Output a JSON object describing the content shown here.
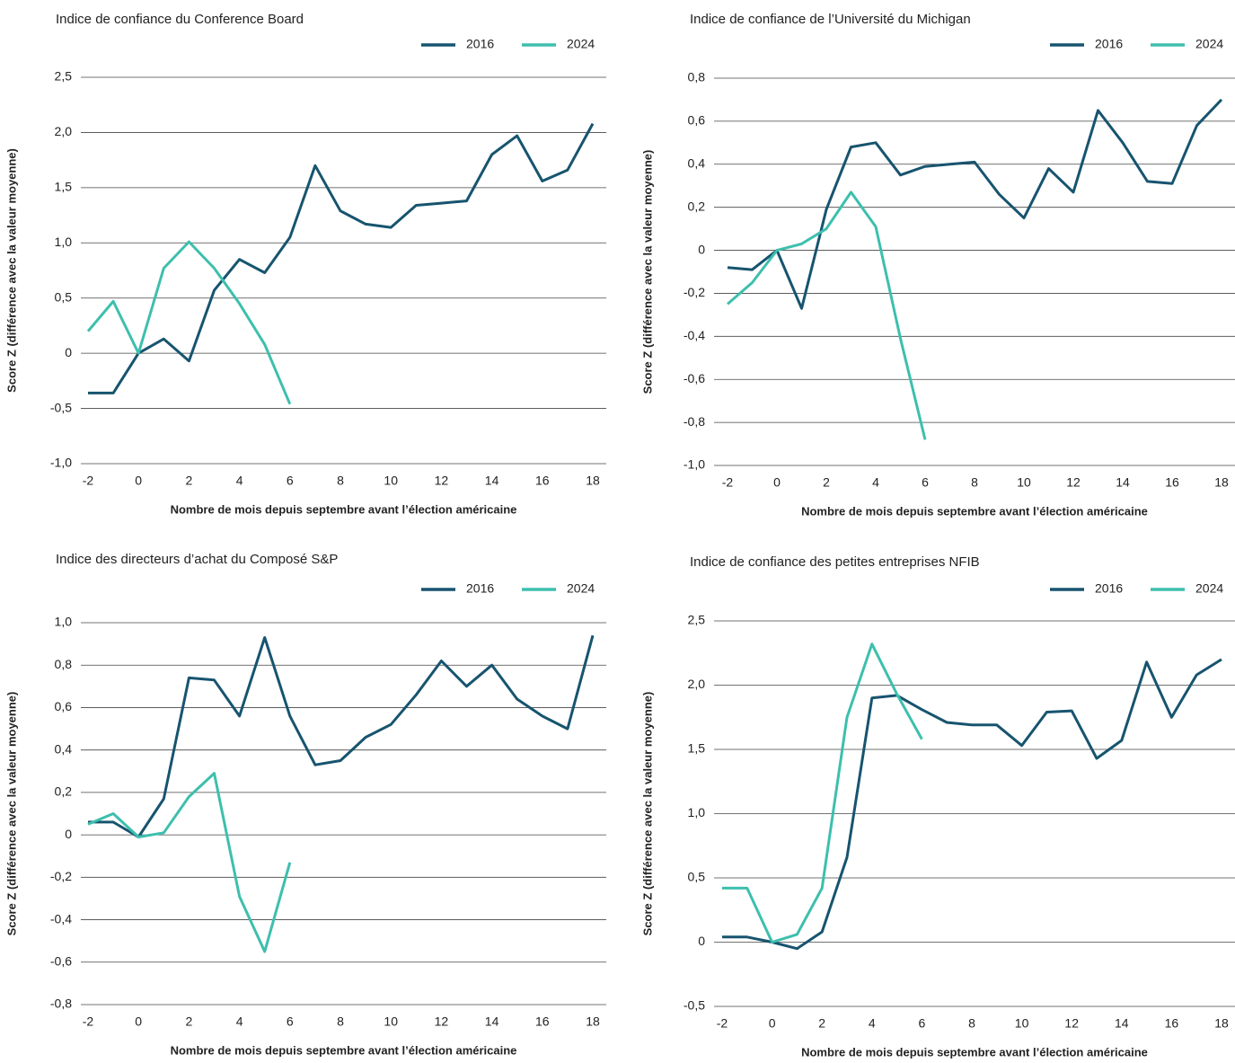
{
  "chart_data": [
    {
      "type": "line",
      "title": "Indice de confiance du Conference Board",
      "ylabel": "Score Z (différence avec la valeur moyenne)",
      "xlabel": "Nombre de mois depuis septembre avant l’élection américaine",
      "x": [
        -2,
        -1,
        0,
        1,
        2,
        3,
        4,
        5,
        6,
        7,
        8,
        9,
        10,
        11,
        12,
        13,
        14,
        15,
        16,
        17,
        18
      ],
      "xlim": [
        -2,
        18
      ],
      "xticks": [
        -2,
        0,
        2,
        4,
        6,
        8,
        10,
        12,
        14,
        16,
        18
      ],
      "ylim": [
        -1.0,
        2.5
      ],
      "yticks": [
        {
          "value": -1.0,
          "label": "-1,0"
        },
        {
          "value": -0.5,
          "label": "-0,5"
        },
        0,
        {
          "value": 0.5,
          "label": "0,5"
        },
        {
          "value": 1.0,
          "label": "1,0"
        },
        {
          "value": 1.5,
          "label": "1,5"
        },
        {
          "value": 2.0,
          "label": "2,0"
        },
        {
          "value": 2.5,
          "label": "2,5"
        }
      ],
      "grid": true,
      "legend": "top-right",
      "series": [
        {
          "name": "2016",
          "color": "#17546f",
          "values": [
            -0.36,
            -0.36,
            0,
            0.13,
            -0.07,
            0.57,
            0.85,
            0.73,
            1.05,
            1.7,
            1.29,
            1.17,
            1.14,
            1.34,
            1.36,
            1.38,
            1.8,
            1.97,
            1.56,
            1.66,
            2.08
          ]
        },
        {
          "name": "2024",
          "color": "#3dbfad",
          "values": [
            0.2,
            0.47,
            0,
            0.77,
            1.01,
            0.77,
            0.45,
            0.08,
            -0.46,
            null,
            null,
            null,
            null,
            null,
            null,
            null,
            null,
            null,
            null,
            null,
            null
          ]
        }
      ]
    },
    {
      "type": "line",
      "title": "Indice de confiance de l’Université du Michigan",
      "ylabel": "Score Z (différence avec la valeur moyenne)",
      "xlabel": "Nombre de mois depuis septembre avant l’élection américaine",
      "x": [
        -2,
        -1,
        0,
        1,
        2,
        3,
        4,
        5,
        6,
        7,
        8,
        9,
        10,
        11,
        12,
        13,
        14,
        15,
        16,
        17,
        18
      ],
      "xlim": [
        -2,
        18
      ],
      "xticks": [
        -2,
        0,
        2,
        4,
        6,
        8,
        10,
        12,
        14,
        16,
        18
      ],
      "ylim": [
        -1.0,
        0.8
      ],
      "yticks": [
        {
          "value": -1.0,
          "label": "-1,0"
        },
        {
          "value": -0.8,
          "label": "-0,8"
        },
        {
          "value": -0.6,
          "label": "-0,6"
        },
        {
          "value": -0.4,
          "label": "-0,4"
        },
        {
          "value": -0.2,
          "label": "-0,2"
        },
        0,
        {
          "value": 0.2,
          "label": "0,2"
        },
        {
          "value": 0.4,
          "label": "0,4"
        },
        {
          "value": 0.6,
          "label": "0,6"
        },
        {
          "value": 0.8,
          "label": "0,8"
        }
      ],
      "grid": true,
      "legend": "top-right",
      "series": [
        {
          "name": "2016",
          "color": "#17546f",
          "values": [
            -0.08,
            -0.09,
            0,
            -0.27,
            0.19,
            0.48,
            0.5,
            0.35,
            0.39,
            0.4,
            0.41,
            0.26,
            0.15,
            0.38,
            0.27,
            0.65,
            0.5,
            0.32,
            0.31,
            0.58,
            0.7
          ]
        },
        {
          "name": "2024",
          "color": "#3dbfad",
          "values": [
            -0.25,
            -0.15,
            0,
            0.03,
            0.1,
            0.27,
            0.11,
            -0.41,
            -0.88,
            null,
            null,
            null,
            null,
            null,
            null,
            null,
            null,
            null,
            null,
            null,
            null
          ]
        }
      ]
    },
    {
      "type": "line",
      "title": "Indice des directeurs d’achat du Composé S&P",
      "ylabel": "Score Z (différence avec la valeur moyenne)",
      "xlabel": "Nombre de mois depuis septembre avant l’élection américaine",
      "x": [
        -2,
        -1,
        0,
        1,
        2,
        3,
        4,
        5,
        6,
        7,
        8,
        9,
        10,
        11,
        12,
        13,
        14,
        15,
        16,
        17,
        18
      ],
      "xlim": [
        -2,
        18
      ],
      "xticks": [
        -2,
        0,
        2,
        4,
        6,
        8,
        10,
        12,
        14,
        16,
        18
      ],
      "ylim": [
        -0.8,
        1.0
      ],
      "yticks": [
        {
          "value": -0.8,
          "label": "-0,8"
        },
        {
          "value": -0.6,
          "label": "-0,6"
        },
        {
          "value": -0.4,
          "label": "-0,4"
        },
        {
          "value": -0.2,
          "label": "-0,2"
        },
        0,
        {
          "value": 0.2,
          "label": "0,2"
        },
        {
          "value": 0.4,
          "label": "0,4"
        },
        {
          "value": 0.6,
          "label": "0,6"
        },
        {
          "value": 0.8,
          "label": "0,8"
        },
        {
          "value": 1.0,
          "label": "1,0"
        }
      ],
      "grid": true,
      "legend": "top-right",
      "series": [
        {
          "name": "2016",
          "color": "#17546f",
          "values": [
            0.06,
            0.06,
            -0.01,
            0.17,
            0.74,
            0.73,
            0.56,
            0.93,
            0.56,
            0.33,
            0.35,
            0.46,
            0.52,
            0.66,
            0.82,
            0.7,
            0.8,
            0.64,
            0.56,
            0.5,
            0.94
          ]
        },
        {
          "name": "2024",
          "color": "#3dbfad",
          "values": [
            0.05,
            0.1,
            -0.01,
            0.01,
            0.18,
            0.29,
            -0.29,
            -0.55,
            -0.13,
            null,
            null,
            null,
            null,
            null,
            null,
            null,
            null,
            null,
            null,
            null,
            null
          ]
        }
      ]
    },
    {
      "type": "line",
      "title": "Indice de confiance des petites entreprises NFIB",
      "ylabel": "Score Z (différence avec la valeur moyenne)",
      "xlabel": "Nombre de mois depuis septembre avant l’élection américaine",
      "x": [
        -2,
        -1,
        0,
        1,
        2,
        3,
        4,
        5,
        6,
        7,
        8,
        9,
        10,
        11,
        12,
        13,
        14,
        15,
        16,
        17,
        18
      ],
      "xlim": [
        -2,
        18
      ],
      "xticks": [
        -2,
        0,
        2,
        4,
        6,
        8,
        10,
        12,
        14,
        16,
        18
      ],
      "ylim": [
        -0.5,
        2.5
      ],
      "yticks": [
        {
          "value": -0.5,
          "label": "-0,5"
        },
        0,
        {
          "value": 0.5,
          "label": "0,5"
        },
        {
          "value": 1.0,
          "label": "1,0"
        },
        {
          "value": 1.5,
          "label": "1,5"
        },
        {
          "value": 2.0,
          "label": "2,0"
        },
        {
          "value": 2.5,
          "label": "2,5"
        }
      ],
      "grid": true,
      "legend": "top-right",
      "series": [
        {
          "name": "2016",
          "color": "#17546f",
          "values": [
            0.04,
            0.04,
            0,
            -0.05,
            0.08,
            0.66,
            1.9,
            1.92,
            1.81,
            1.71,
            1.69,
            1.69,
            1.53,
            1.79,
            1.8,
            1.43,
            1.57,
            2.18,
            1.75,
            2.08,
            2.2
          ]
        },
        {
          "name": "2024",
          "color": "#3dbfad",
          "values": [
            0.42,
            0.42,
            0,
            0.06,
            0.42,
            1.75,
            2.32,
            1.93,
            1.58,
            null,
            null,
            null,
            null,
            null,
            null,
            null,
            null,
            null,
            null,
            null,
            null
          ]
        }
      ]
    }
  ]
}
